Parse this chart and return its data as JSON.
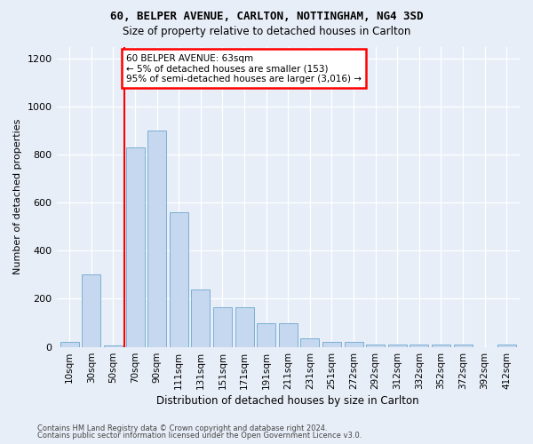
{
  "title": "60, BELPER AVENUE, CARLTON, NOTTINGHAM, NG4 3SD",
  "subtitle": "Size of property relative to detached houses in Carlton",
  "xlabel": "Distribution of detached houses by size in Carlton",
  "ylabel": "Number of detached properties",
  "categories": [
    "10sqm",
    "30sqm",
    "50sqm",
    "70sqm",
    "90sqm",
    "111sqm",
    "131sqm",
    "151sqm",
    "171sqm",
    "191sqm",
    "211sqm",
    "231sqm",
    "251sqm",
    "272sqm",
    "292sqm",
    "312sqm",
    "332sqm",
    "352sqm",
    "372sqm",
    "392sqm",
    "412sqm"
  ],
  "values": [
    20,
    300,
    5,
    830,
    900,
    560,
    240,
    165,
    165,
    100,
    100,
    35,
    22,
    22,
    10,
    10,
    10,
    10,
    10,
    0,
    10
  ],
  "bar_color": "#c5d8ef",
  "bar_edge_color": "#7bafd4",
  "vline_x": 3,
  "annotation_text": "60 BELPER AVENUE: 63sqm\n← 5% of detached houses are smaller (153)\n95% of semi-detached houses are larger (3,016) →",
  "annotation_box_color": "white",
  "annotation_box_edge": "red",
  "ylim": [
    0,
    1250
  ],
  "yticks": [
    0,
    200,
    400,
    600,
    800,
    1000,
    1200
  ],
  "footer1": "Contains HM Land Registry data © Crown copyright and database right 2024.",
  "footer2": "Contains public sector information licensed under the Open Government Licence v3.0.",
  "bg_color": "#e8eef8",
  "plot_bg_color": "#e8eef8"
}
